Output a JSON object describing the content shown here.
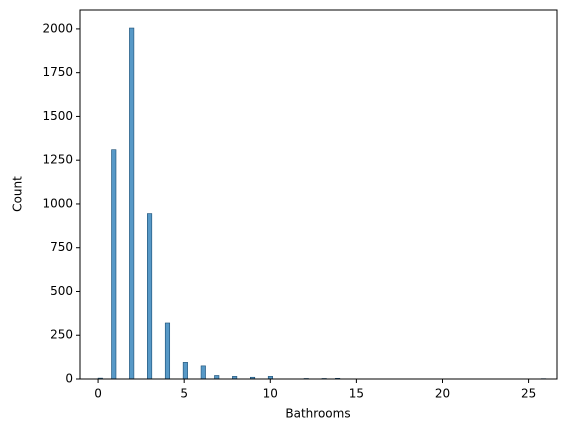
{
  "chart_data": {
    "type": "histogram",
    "x_label": "Bathrooms",
    "y_label": "Count",
    "color": "#1f77b4",
    "bins": [
      0,
      0.26,
      0.52,
      0.78,
      1.04,
      1.3,
      1.56,
      1.82,
      2.08,
      2.34,
      2.6,
      2.86,
      3.12,
      3.38,
      3.64,
      3.9,
      4.16,
      4.42,
      4.68,
      4.94,
      5.2,
      5.46,
      5.72,
      5.98,
      6.24,
      6.5,
      6.76,
      7.02,
      7.28,
      7.54,
      7.8,
      8.06,
      8.32,
      8.58,
      8.84,
      9.1,
      9.36,
      9.62,
      9.88,
      10.14,
      10.4,
      10.66,
      10.92,
      11.18,
      11.44,
      11.7,
      11.96,
      12.22,
      12.48,
      12.74,
      13,
      13.26,
      13.52,
      13.78,
      14.04,
      14.3,
      14.56,
      14.82,
      15.08,
      15.34,
      15.6,
      15.86,
      16.12,
      16.38,
      16.64,
      16.9,
      17.16,
      17.42,
      17.68,
      17.94,
      18.2,
      18.46,
      18.72,
      18.98,
      19.24,
      19.5,
      19.76,
      20.02,
      20.28,
      20.54,
      20.8,
      21.06,
      21.32,
      21.58,
      21.84,
      22.1,
      22.36,
      22.62,
      22.88,
      23.14,
      23.4,
      23.66,
      23.92,
      24.18,
      24.44,
      24.7,
      24.96,
      25.22,
      25.48,
      25.74,
      26
    ],
    "values": [
      5,
      0,
      0,
      1310,
      0,
      0,
      0,
      2005,
      0,
      0,
      0,
      945,
      0,
      0,
      0,
      320,
      0,
      0,
      0,
      95,
      0,
      0,
      0,
      75,
      0,
      0,
      20,
      0,
      0,
      0,
      15,
      0,
      0,
      0,
      10,
      0,
      0,
      0,
      15,
      0,
      0,
      0,
      0,
      0,
      0,
      0,
      3,
      0,
      0,
      0,
      3,
      0,
      0,
      4,
      0,
      0,
      0,
      0,
      0,
      0,
      0,
      0,
      0,
      0,
      0,
      0,
      0,
      0,
      0,
      0,
      0,
      0,
      0,
      0,
      0,
      0,
      0,
      0,
      0,
      0,
      0,
      0,
      0,
      0,
      0,
      0,
      0,
      0,
      0,
      0,
      0,
      0,
      0,
      0,
      0,
      0,
      0,
      0,
      0,
      2
    ],
    "xlim": [
      -1.05,
      26.65
    ],
    "ylim": [
      0,
      2108
    ],
    "xticks": [
      0,
      5,
      10,
      15,
      20,
      25
    ],
    "yticks": [
      0,
      250,
      500,
      750,
      1000,
      1250,
      1500,
      1750,
      2000
    ]
  }
}
